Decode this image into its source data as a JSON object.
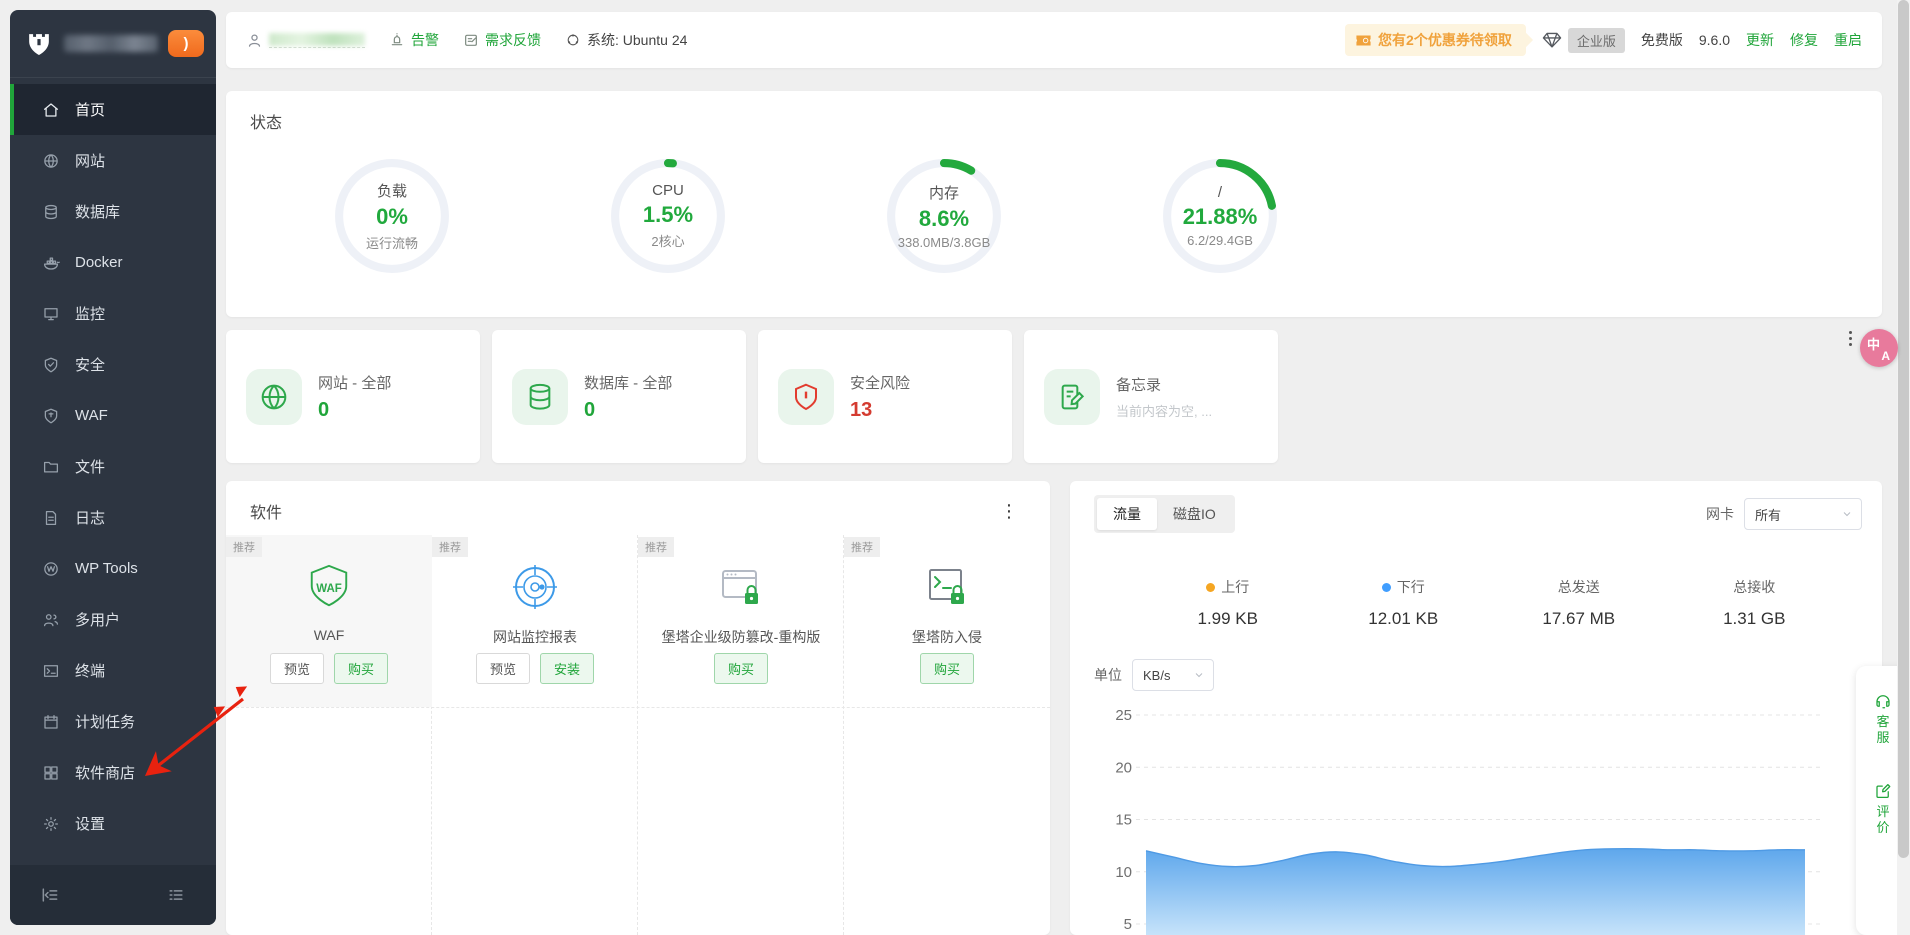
{
  "topbar": {
    "alarm": "告警",
    "feedback": "需求反馈",
    "system": "系统: Ubuntu 24",
    "coupon_banner": "您有2个优惠券待领取",
    "plan_badge": "企业版",
    "edition": "免费版",
    "version": "9.6.0",
    "update": "更新",
    "repair": "修复",
    "restart": "重启"
  },
  "sidebar": {
    "items": [
      {
        "label": "首页",
        "icon": "home-icon",
        "active": true
      },
      {
        "label": "网站",
        "icon": "globe-icon",
        "active": false
      },
      {
        "label": "数据库",
        "icon": "database-icon",
        "active": false
      },
      {
        "label": "Docker",
        "icon": "docker-icon",
        "active": false
      },
      {
        "label": "监控",
        "icon": "monitor-icon",
        "active": false
      },
      {
        "label": "安全",
        "icon": "shield-check-icon",
        "active": false
      },
      {
        "label": "WAF",
        "icon": "waf-shield-icon",
        "active": false
      },
      {
        "label": "文件",
        "icon": "folder-icon",
        "active": false
      },
      {
        "label": "日志",
        "icon": "log-file-icon",
        "active": false
      },
      {
        "label": "WP Tools",
        "icon": "wp-icon",
        "active": false
      },
      {
        "label": "多用户",
        "icon": "users-icon",
        "active": false
      },
      {
        "label": "终端",
        "icon": "terminal-icon",
        "active": false
      },
      {
        "label": "计划任务",
        "icon": "calendar-icon",
        "active": false
      },
      {
        "label": "软件商店",
        "icon": "app-grid-icon",
        "active": false
      },
      {
        "label": "设置",
        "icon": "gear-icon",
        "active": false
      }
    ]
  },
  "status": {
    "title": "状态",
    "gauges": [
      {
        "label": "负载",
        "value": "0%",
        "sub": "运行流畅",
        "percent": 0
      },
      {
        "label": "CPU",
        "value": "1.5%",
        "sub": "2核心",
        "percent": 1.5
      },
      {
        "label": "内存",
        "value": "8.6%",
        "sub": "338.0MB/3.8GB",
        "percent": 8.6
      },
      {
        "label": "/",
        "value": "21.88%",
        "sub": "6.2/29.4GB",
        "percent": 21.88
      }
    ]
  },
  "cards": [
    {
      "title": "网站 - 全部",
      "value": "0",
      "icon": "globe-icon"
    },
    {
      "title": "数据库 - 全部",
      "value": "0",
      "icon": "database-icon"
    },
    {
      "title": "安全风险",
      "value": "13",
      "icon": "risk-shield-icon"
    },
    {
      "title": "备忘录",
      "value": "当前内容为空, ...",
      "icon": "memo-icon"
    }
  ],
  "software": {
    "title": "软件",
    "apps": [
      {
        "tag": "推荐",
        "name": "WAF",
        "icon": "waf-shield-icon",
        "buttons": [
          {
            "label": "预览",
            "style": "plain"
          },
          {
            "label": "购买",
            "style": "green"
          }
        ]
      },
      {
        "tag": "推荐",
        "name": "网站监控报表",
        "icon": "monitor-target-icon",
        "buttons": [
          {
            "label": "预览",
            "style": "plain"
          },
          {
            "label": "安装",
            "style": "green"
          }
        ]
      },
      {
        "tag": "推荐",
        "name": "堡塔企业级防篡改-重构版",
        "icon": "browser-lock-icon",
        "buttons": [
          {
            "label": "购买",
            "style": "green"
          }
        ]
      },
      {
        "tag": "推荐",
        "name": "堡塔防入侵",
        "icon": "terminal-lock-icon",
        "buttons": [
          {
            "label": "购买",
            "style": "green"
          }
        ]
      }
    ]
  },
  "traffic": {
    "tabs": [
      {
        "label": "流量",
        "active": true
      },
      {
        "label": "磁盘IO",
        "active": false
      }
    ],
    "nic_label": "网卡",
    "nic_value": "所有",
    "stats": [
      {
        "label": "上行",
        "value": "1.99 KB",
        "dot_color": "#f5a623"
      },
      {
        "label": "下行",
        "value": "12.01 KB",
        "dot_color": "#409eff"
      },
      {
        "label": "总发送",
        "value": "17.67 MB",
        "dot_color": ""
      },
      {
        "label": "总接收",
        "value": "1.31 GB",
        "dot_color": ""
      }
    ],
    "unit_label": "单位",
    "unit_value": "KB/s",
    "chart_data": {
      "type": "area",
      "title": "",
      "xlabel": "",
      "ylabel": "KB/s",
      "yticks": [
        5,
        10,
        15,
        20,
        25
      ],
      "ylim": [
        0,
        27
      ],
      "grid": "dashed-horizontal",
      "legend": [
        "上行",
        "下行"
      ],
      "series": [
        {
          "name": "下行",
          "color": "#5ea7ec",
          "values": [
            12.0,
            11.4,
            10.8,
            10.5,
            10.6,
            11.1,
            11.7,
            11.9,
            11.6,
            11.0,
            10.6,
            10.5,
            10.7,
            11.0,
            11.4,
            11.8,
            12.1,
            12.2,
            12.2,
            12.1,
            12.1,
            12.0,
            12.0,
            12.1,
            12.1
          ]
        }
      ]
    }
  },
  "floating": {
    "translate_zh": "中",
    "translate_en": "A",
    "service": "客服",
    "review": "评价"
  }
}
